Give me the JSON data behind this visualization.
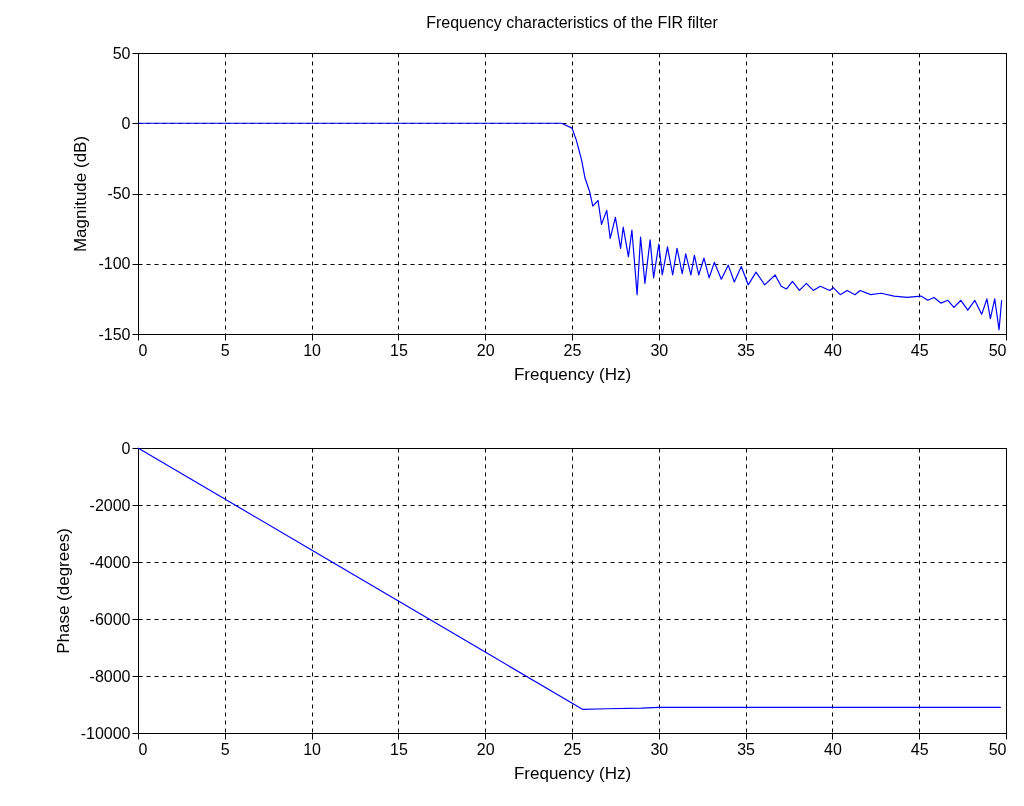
{
  "chart_data": [
    {
      "type": "line",
      "title": "Frequency characteristics of the FIR filter",
      "xlabel": "Frequency (Hz)",
      "ylabel": "Magnitude (dB)",
      "xlim": [
        0,
        50
      ],
      "ylim": [
        -150,
        50
      ],
      "xticks": [
        0,
        5,
        10,
        15,
        20,
        25,
        30,
        35,
        40,
        45,
        50
      ],
      "yticks": [
        -150,
        -100,
        -50,
        0,
        50
      ],
      "grid": true,
      "x": [
        0,
        24.4,
        25,
        25.25,
        25.55,
        25.75,
        26,
        26.2,
        26.5,
        26.7,
        27,
        27.2,
        27.5,
        27.8,
        27.95,
        28.25,
        28.45,
        28.75,
        28.95,
        29.2,
        29.5,
        29.7,
        30,
        30.2,
        30.5,
        30.8,
        31.05,
        31.35,
        31.55,
        31.85,
        32.05,
        32.3,
        32.6,
        32.9,
        33.2,
        33.6,
        34,
        34.35,
        34.75,
        35.15,
        35.6,
        36.1,
        36.7,
        37.05,
        37.35,
        37.7,
        38.1,
        38.5,
        38.9,
        39.3,
        39.85,
        40.05,
        40.45,
        40.85,
        41.3,
        41.6,
        42.2,
        42.8,
        43.55,
        44.3,
        45.1,
        45.5,
        45.85,
        46.25,
        46.65,
        47,
        47.4,
        47.8,
        48.2,
        48.6,
        48.9,
        49.1,
        49.35,
        49.6,
        49.75
      ],
      "series": [
        {
          "color": "#0000ff",
          "values": [
            0,
            0,
            -3.5,
            -12,
            -26,
            -39,
            -48,
            -59,
            -55,
            -72,
            -62,
            -82,
            -67,
            -89,
            -74,
            -95,
            -76,
            -122,
            -81,
            -114,
            -83,
            -110,
            -86,
            -108,
            -88,
            -108,
            -89,
            -107,
            -93,
            -108,
            -94,
            -108,
            -96,
            -110,
            -99,
            -111,
            -101,
            -113,
            -102,
            -115,
            -106,
            -115,
            -108,
            -116,
            -118,
            -112.5,
            -119,
            -114,
            -119,
            -116,
            -119,
            -117,
            -122,
            -119,
            -122,
            -119,
            -122,
            -121,
            -123,
            -124,
            -123,
            -126,
            -124,
            -128,
            -126,
            -131,
            -126,
            -133,
            -126,
            -136,
            -125,
            -139,
            -125,
            -147,
            -126
          ]
        }
      ]
    },
    {
      "type": "line",
      "xlabel": "Frequency (Hz)",
      "ylabel": "Phase (degrees)",
      "xlim": [
        0,
        50
      ],
      "ylim": [
        -10000,
        0
      ],
      "xticks": [
        0,
        5,
        10,
        15,
        20,
        25,
        30,
        35,
        40,
        45,
        50
      ],
      "yticks": [
        -10000,
        -8000,
        -6000,
        -4000,
        -2000,
        0
      ],
      "grid": true,
      "x": [
        0,
        5,
        10,
        15,
        20,
        25.6,
        27,
        29,
        30,
        35,
        40,
        45,
        49.7
      ],
      "series": [
        {
          "color": "#0000ff",
          "values": [
            0,
            -1790,
            -3580,
            -5370,
            -7160,
            -9170,
            -9150,
            -9130,
            -9100,
            -9100,
            -9100,
            -9100,
            -9100
          ]
        }
      ]
    }
  ]
}
